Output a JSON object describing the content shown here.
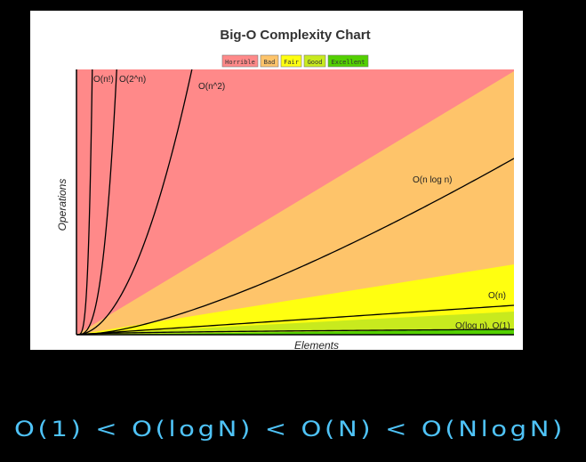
{
  "chart_data": {
    "type": "area",
    "title": "Big-O Complexity Chart",
    "xlabel": "Elements",
    "ylabel": "Operations",
    "legend_position": "top-center",
    "legend": [
      {
        "label": "Horrible",
        "color": "#ff8989"
      },
      {
        "label": "Bad",
        "color": "#fec46a"
      },
      {
        "label": "Fair",
        "color": "#ffff10"
      },
      {
        "label": "Good",
        "color": "#c8ea1e"
      },
      {
        "label": "Excellent",
        "color": "#53d000"
      }
    ],
    "regions": [
      {
        "name": "Horrible",
        "color": "#ff8989"
      },
      {
        "name": "Bad",
        "color": "#fec46a"
      },
      {
        "name": "Fair",
        "color": "#ffff10"
      },
      {
        "name": "Good",
        "color": "#c8ea1e"
      },
      {
        "name": "Excellent",
        "color": "#53d000"
      }
    ],
    "series": [
      {
        "name": "O(n!)",
        "label": "O(n!)"
      },
      {
        "name": "O(2^n)",
        "label": "O(2^n)"
      },
      {
        "name": "O(n^2)",
        "label": "O(n^2)"
      },
      {
        "name": "O(n log n)",
        "label": "O(n log n)"
      },
      {
        "name": "O(n)",
        "label": "O(n)"
      },
      {
        "name": "O(log n)",
        "label": "O(log n), O(1)"
      }
    ],
    "grid": false
  },
  "annotation": {
    "handwritten_text": "O(1) < O(logN) < O(N) < O(NlogN)",
    "color": "#4fc3f7"
  }
}
